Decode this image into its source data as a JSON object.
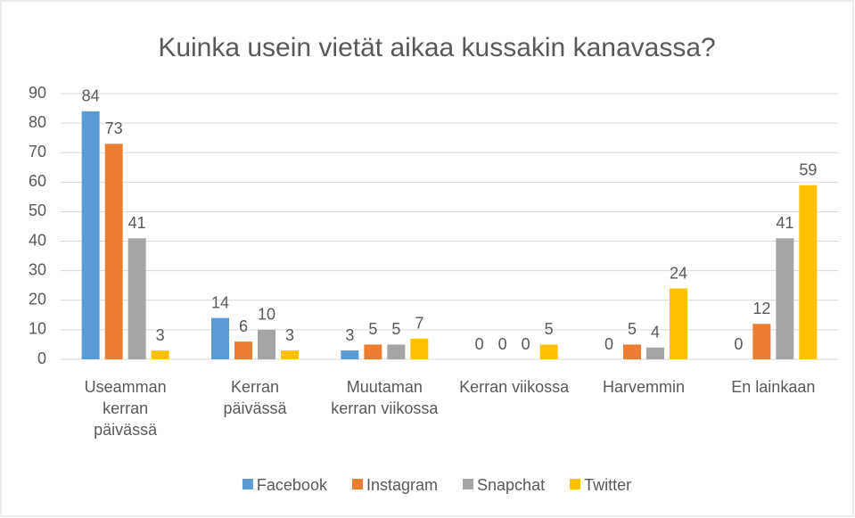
{
  "chart_data": {
    "type": "bar",
    "title": "Kuinka usein vietät aikaa kussakin kanavassa?",
    "categories": [
      "Useamman kerran päivässä",
      "Kerran päivässä",
      "Muutaman kerran viikossa",
      "Kerran viikossa",
      "Harvemmin",
      "En lainkaan"
    ],
    "series": [
      {
        "name": "Facebook",
        "color": "#5b9bd5",
        "values": [
          84,
          14,
          3,
          0,
          0,
          0
        ]
      },
      {
        "name": "Instagram",
        "color": "#ed7d31",
        "values": [
          73,
          6,
          5,
          0,
          5,
          12
        ]
      },
      {
        "name": "Snapchat",
        "color": "#a5a5a5",
        "values": [
          41,
          10,
          5,
          0,
          4,
          41
        ]
      },
      {
        "name": "Twitter",
        "color": "#ffc000",
        "values": [
          3,
          3,
          7,
          5,
          24,
          59
        ]
      }
    ],
    "ylim": [
      0,
      90
    ],
    "yticks": [
      0,
      10,
      20,
      30,
      40,
      50,
      60,
      70,
      80,
      90
    ],
    "grid": true,
    "legend": "bottom"
  }
}
